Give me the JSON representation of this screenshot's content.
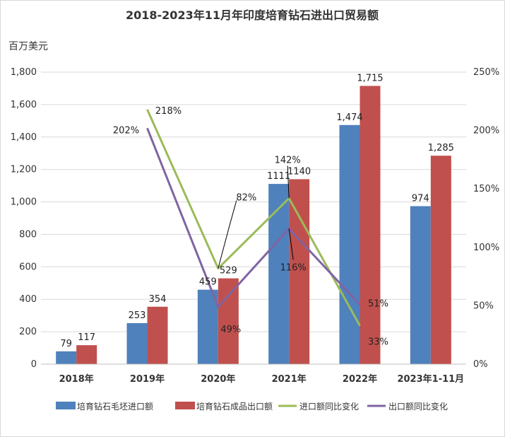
{
  "chart_data": {
    "type": "bar",
    "title": "2018-2023年11月年印度培育钻石进出口贸易额",
    "left_axis_unit": "百万美元",
    "categories": [
      "2018年",
      "2019年",
      "2020年",
      "2021年",
      "2022年",
      "2023年1-11月"
    ],
    "ylim": [
      0,
      1800
    ],
    "y_ticks": [
      0,
      200,
      400,
      600,
      800,
      1000,
      1200,
      1400,
      1600,
      1800
    ],
    "y_tick_labels": [
      "0",
      "200",
      "400",
      "600",
      "800",
      "1,000",
      "1,200",
      "1,400",
      "1,600",
      "1,800"
    ],
    "y2lim": [
      0,
      250
    ],
    "y2_ticks": [
      0,
      50,
      100,
      150,
      200,
      250
    ],
    "y2_tick_labels": [
      "0%",
      "50%",
      "100%",
      "150%",
      "200%",
      "250%"
    ],
    "grid": true,
    "legend_position": "bottom",
    "series": [
      {
        "name": "培育钻石毛坯进口额",
        "kind": "bar",
        "axis": "left",
        "color": "#4f81bd",
        "values": [
          79,
          253,
          459,
          1111,
          1474,
          974
        ],
        "labels": [
          "79",
          "253",
          "459",
          "1111",
          "1,474",
          "974"
        ]
      },
      {
        "name": "培育钻石成品出口额",
        "kind": "bar",
        "axis": "left",
        "color": "#c0504d",
        "values": [
          117,
          354,
          529,
          1140,
          1715,
          1285
        ],
        "labels": [
          "117",
          "354",
          "529",
          "1140",
          "1,715",
          "1,285"
        ]
      },
      {
        "name": "进口额同比变化",
        "kind": "line",
        "axis": "right",
        "color": "#9bbb59",
        "values": [
          null,
          218,
          82,
          142,
          33,
          null
        ],
        "labels": [
          "",
          "218%",
          "82%",
          "142%",
          "33%",
          ""
        ]
      },
      {
        "name": "出口额同比变化",
        "kind": "line",
        "axis": "right",
        "color": "#8064a2",
        "values": [
          null,
          202,
          49,
          116,
          51,
          null
        ],
        "labels": [
          "",
          "202%",
          "49%",
          "116%",
          "51%",
          ""
        ]
      }
    ]
  }
}
